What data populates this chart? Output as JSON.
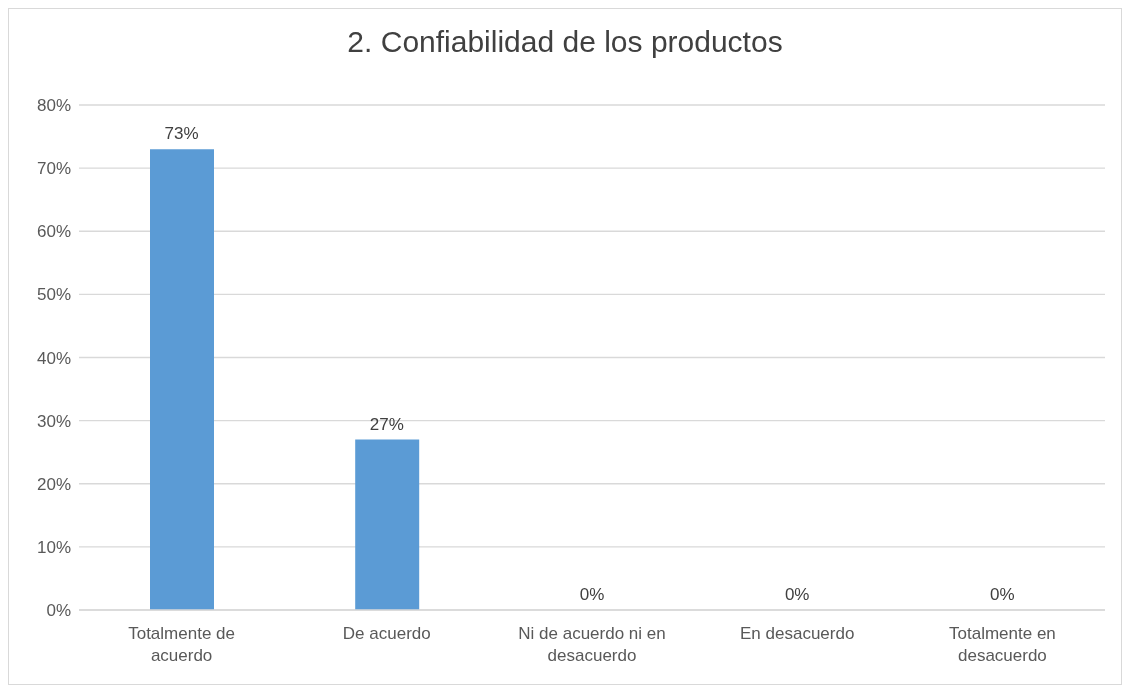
{
  "chart_data": {
    "type": "bar",
    "title": "2. Confiabilidad de los productos",
    "categories": [
      "Totalmente de acuerdo",
      "De acuerdo",
      "Ni de acuerdo ni en desacuerdo",
      "En desacuerdo",
      "Totalmente en desacuerdo"
    ],
    "values": [
      73,
      27,
      0,
      0,
      0
    ],
    "value_labels": [
      "73%",
      "27%",
      "0%",
      "0%",
      "0%"
    ],
    "color": "#5b9bd5",
    "ylim": [
      0,
      80
    ],
    "yticks": [
      {
        "value": 0,
        "label": "0%"
      },
      {
        "value": 10,
        "label": "10%"
      },
      {
        "value": 20,
        "label": "20%"
      },
      {
        "value": 30,
        "label": "30%"
      },
      {
        "value": 40,
        "label": "40%"
      },
      {
        "value": 50,
        "label": "50%"
      },
      {
        "value": 60,
        "label": "60%"
      },
      {
        "value": 70,
        "label": "70%"
      },
      {
        "value": 80,
        "label": "80%"
      }
    ],
    "grid": "y",
    "legend": false
  }
}
